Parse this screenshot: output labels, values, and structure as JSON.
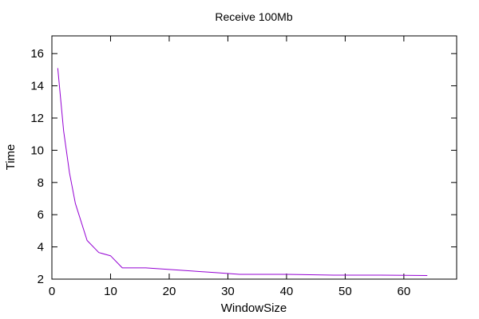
{
  "chart_data": {
    "type": "line",
    "title": "Receive 100Mb",
    "xlabel": "WindowSize",
    "ylabel": "Time",
    "xlim": [
      0,
      69
    ],
    "ylim": [
      2,
      17.1
    ],
    "x_ticks": [
      0,
      10,
      20,
      30,
      40,
      50,
      60
    ],
    "y_ticks": [
      2,
      4,
      6,
      8,
      10,
      12,
      14,
      16
    ],
    "grid": false,
    "legend": "none",
    "series": [
      {
        "color": "#9400d3",
        "x": [
          1,
          2,
          3,
          4,
          6,
          8,
          10,
          12,
          16,
          20,
          24,
          28,
          32,
          40,
          48,
          56,
          64
        ],
        "y": [
          15.1,
          11.2,
          8.6,
          6.7,
          4.4,
          3.65,
          3.45,
          2.7,
          2.7,
          2.6,
          2.5,
          2.4,
          2.3,
          2.3,
          2.25,
          2.25,
          2.22
        ]
      }
    ]
  }
}
